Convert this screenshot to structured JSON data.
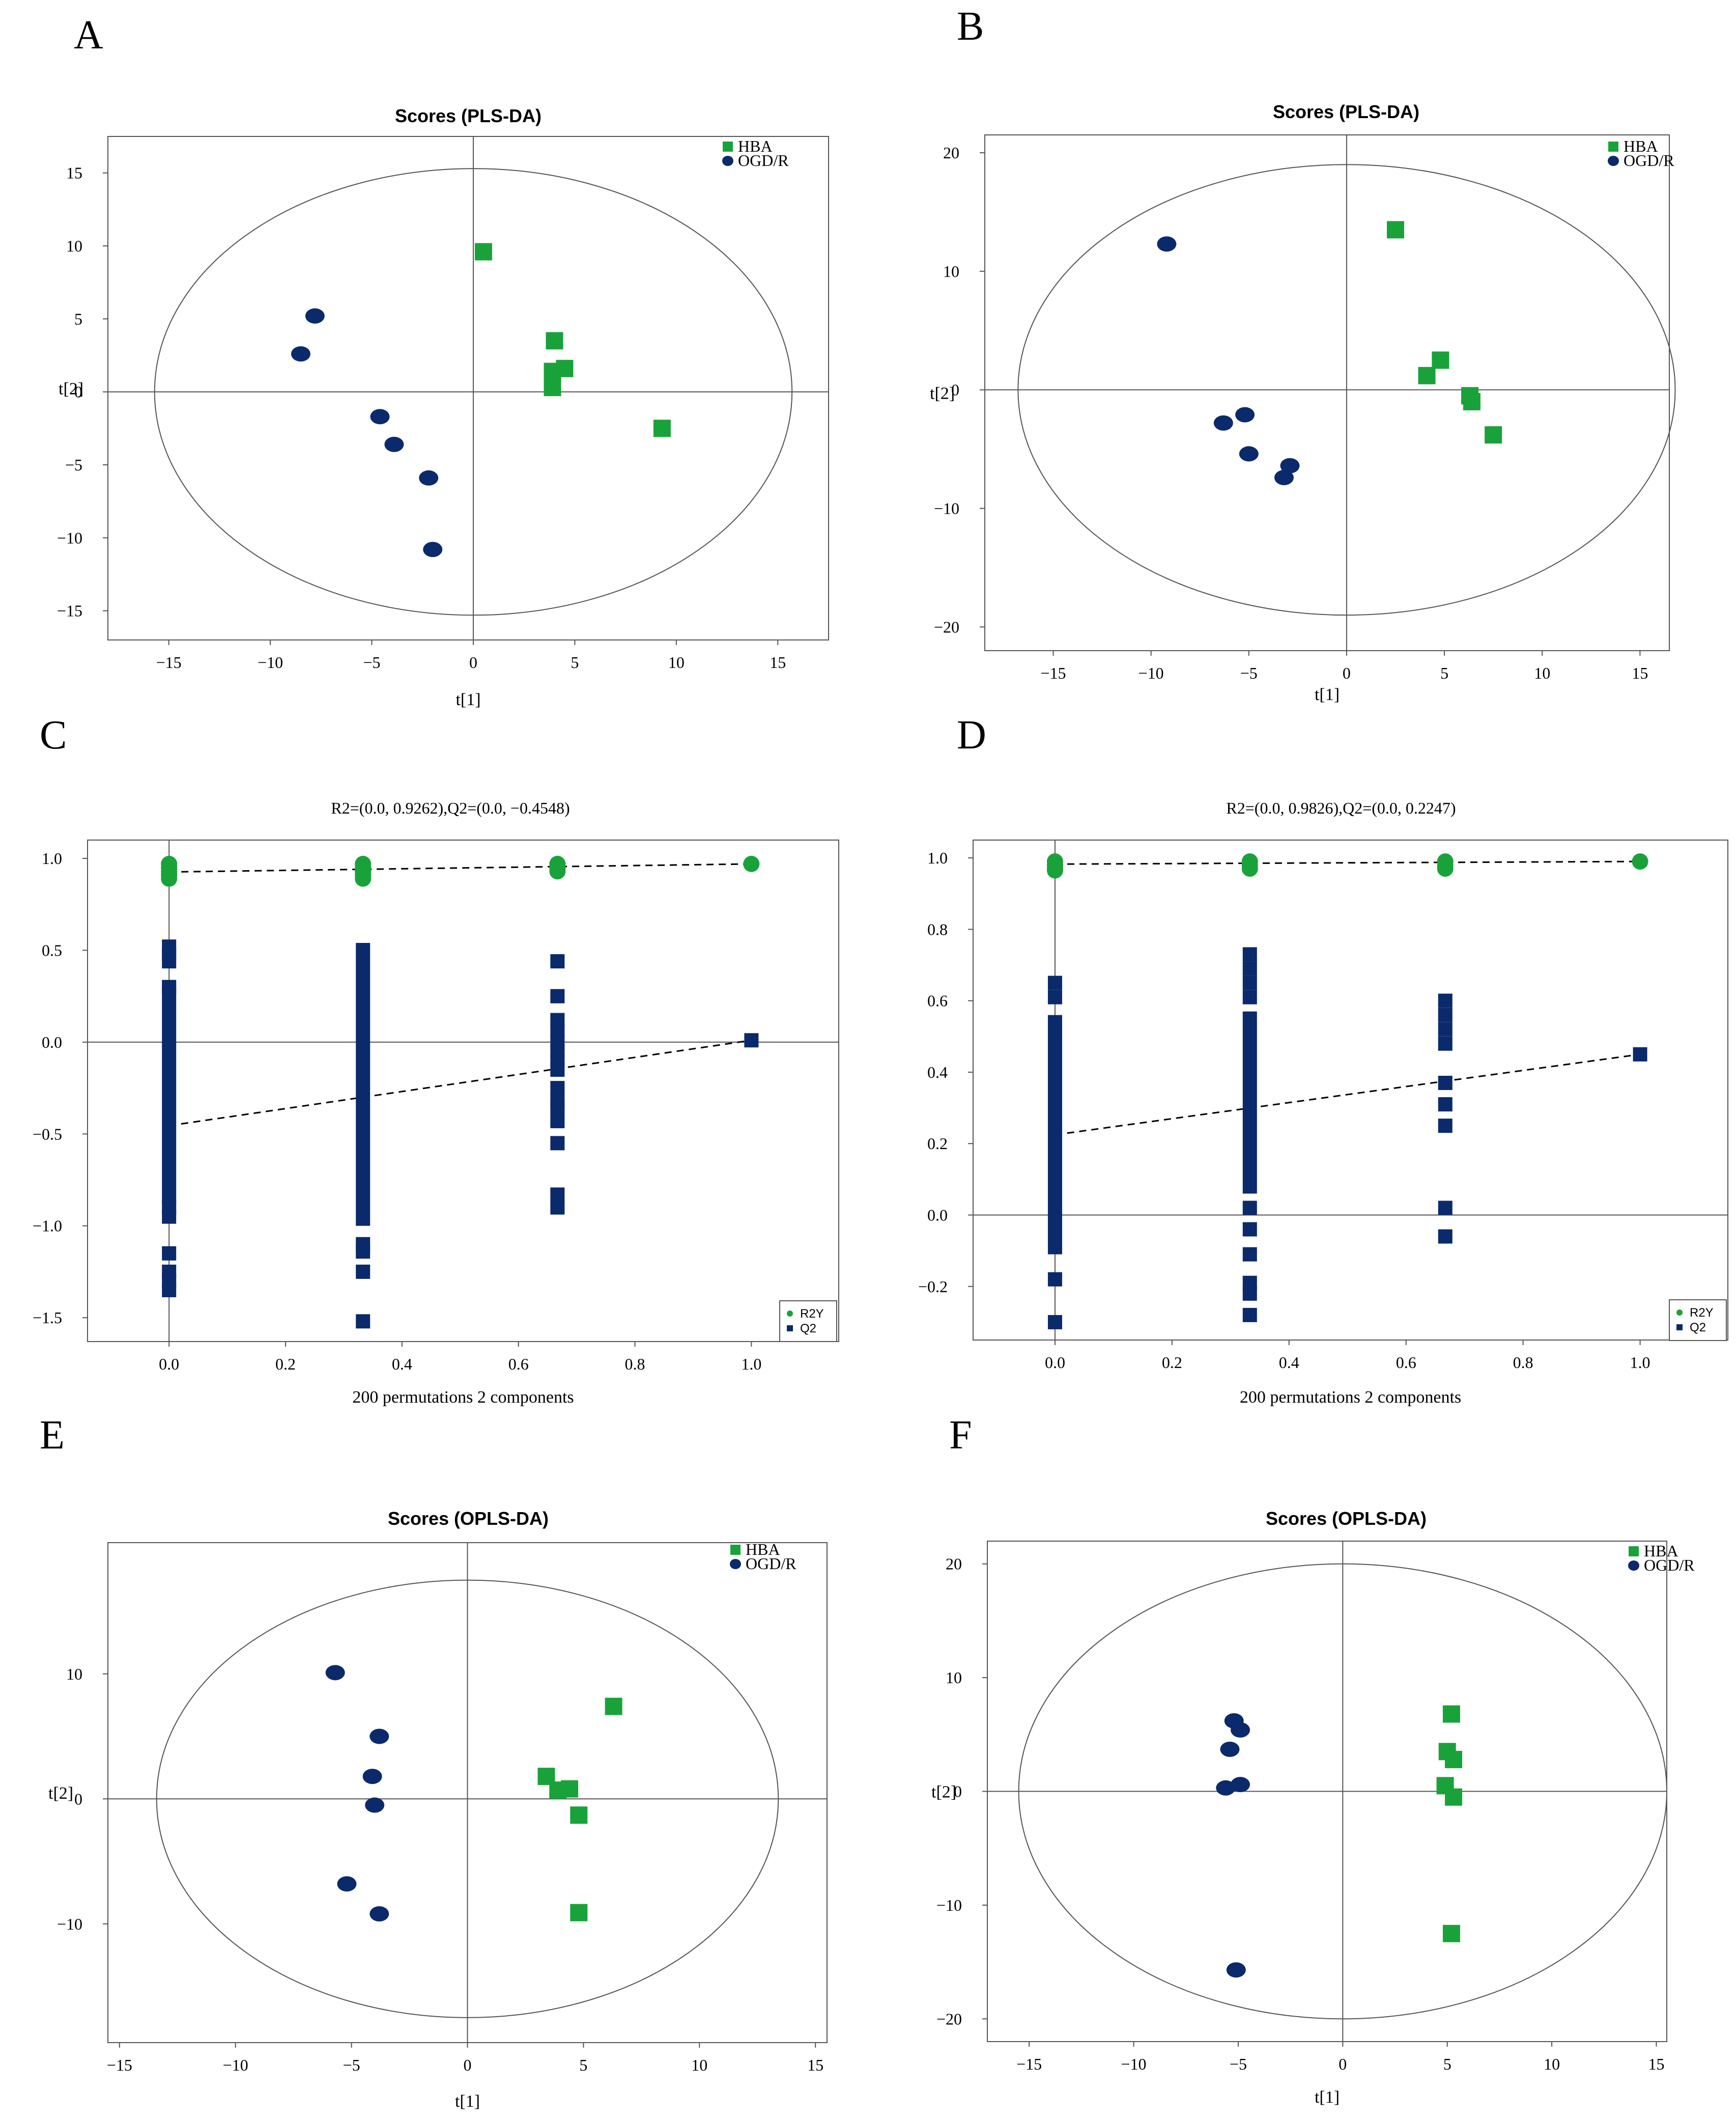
{
  "colors": {
    "green": "#1aa23a",
    "navy": "#0b2a6b",
    "axis": "#555555",
    "ellipse": "#555555"
  },
  "chart_data": [
    {
      "panel": "A",
      "type": "scatter",
      "title": "Scores (PLS-DA)",
      "xlabel": "t[1]",
      "ylabel": "t[2]",
      "xlim": [
        -18,
        17.5
      ],
      "ylim": [
        -17,
        17.5
      ],
      "xticks": [
        -15,
        -10,
        -5,
        0,
        5,
        10,
        15
      ],
      "yticks": [
        -15,
        -10,
        -5,
        0,
        5,
        10,
        15
      ],
      "ellipse": {
        "rx": 15.7,
        "ry": 15.3
      },
      "legend": [
        "HBA",
        "OGD/R"
      ],
      "series": [
        {
          "name": "HBA",
          "marker": "square",
          "color": "#1aa23a",
          "points": [
            [
              0.5,
              9.6
            ],
            [
              4.0,
              3.5
            ],
            [
              3.9,
              1.4
            ],
            [
              4.5,
              1.6
            ],
            [
              3.9,
              0.3
            ],
            [
              9.3,
              -2.5
            ]
          ]
        },
        {
          "name": "OGD/R",
          "marker": "circle",
          "color": "#0b2a6b",
          "points": [
            [
              -7.8,
              5.2
            ],
            [
              -8.5,
              2.6
            ],
            [
              -4.6,
              -1.7
            ],
            [
              -3.9,
              -3.6
            ],
            [
              -2.2,
              -5.9
            ],
            [
              -2.0,
              -10.8
            ]
          ]
        }
      ]
    },
    {
      "panel": "B",
      "type": "scatter",
      "title": "Scores (PLS-DA)",
      "xlabel": "t[1]",
      "ylabel": "t[2]",
      "xlim": [
        -18.5,
        16.5
      ],
      "ylim": [
        -22,
        21.5
      ],
      "xticks": [
        -15,
        -10,
        -5,
        0,
        5,
        10,
        15
      ],
      "yticks": [
        -20,
        -10,
        0,
        10,
        20
      ],
      "ellipse": {
        "rx": 16.8,
        "ry": 19
      },
      "legend": [
        "HBA",
        "OGD/R"
      ],
      "series": [
        {
          "name": "HBA",
          "marker": "square",
          "color": "#1aa23a",
          "points": [
            [
              2.5,
              13.5
            ],
            [
              4.8,
              2.5
            ],
            [
              4.1,
              1.2
            ],
            [
              6.3,
              -0.5
            ],
            [
              6.4,
              -1.0
            ],
            [
              7.5,
              -3.8
            ]
          ]
        },
        {
          "name": "OGD/R",
          "marker": "circle",
          "color": "#0b2a6b",
          "points": [
            [
              -9.2,
              12.3
            ],
            [
              -5.2,
              -2.1
            ],
            [
              -6.3,
              -2.8
            ],
            [
              -5.0,
              -5.4
            ],
            [
              -2.9,
              -6.4
            ],
            [
              -3.2,
              -7.4
            ]
          ]
        }
      ]
    },
    {
      "panel": "C",
      "type": "scatter",
      "title": "R2=(0.0, 0.9262),Q2=(0.0, −0.4548)",
      "xlabel": "200 permutations 2 components",
      "ylabel": "",
      "xlim": [
        -0.14,
        1.15
      ],
      "ylim": [
        -1.63,
        1.1
      ],
      "xticks": [
        0.0,
        0.2,
        0.4,
        0.6,
        0.8,
        1.0
      ],
      "yticks": [
        -1.5,
        -1.0,
        -0.5,
        0.0,
        0.5,
        1.0
      ],
      "legend": [
        "R2Y",
        "Q2"
      ],
      "regression": [
        {
          "name": "R2Y",
          "from": [
            0.0,
            0.9262
          ],
          "to": [
            1.0,
            0.97
          ]
        },
        {
          "name": "Q2",
          "from": [
            0.0,
            -0.4548
          ],
          "to": [
            1.0,
            0.01
          ]
        }
      ],
      "series": [
        {
          "name": "R2Y",
          "marker": "circle",
          "color": "#1aa23a",
          "points": [
            [
              0.0,
              0.97
            ],
            [
              0.0,
              0.95
            ],
            [
              0.0,
              0.93
            ],
            [
              0.0,
              0.91
            ],
            [
              0.0,
              0.89
            ],
            [
              0.333,
              0.97
            ],
            [
              0.333,
              0.95
            ],
            [
              0.333,
              0.93
            ],
            [
              0.333,
              0.91
            ],
            [
              0.333,
              0.89
            ],
            [
              0.667,
              0.97
            ],
            [
              0.667,
              0.95
            ],
            [
              0.667,
              0.93
            ],
            [
              1.0,
              0.97
            ]
          ]
        },
        {
          "name": "Q2",
          "marker": "square",
          "color": "#0b2a6b",
          "points": [
            [
              0.0,
              0.52
            ],
            [
              0.0,
              0.48
            ],
            [
              0.0,
              0.44
            ],
            [
              0.0,
              0.3
            ],
            [
              0.0,
              -0.9
            ],
            [
              0.0,
              -0.95
            ],
            [
              0.0,
              -1.15
            ],
            [
              0.0,
              -1.25
            ],
            [
              0.0,
              -1.3
            ],
            [
              0.0,
              -1.35
            ],
            [
              0.333,
              -1.1
            ],
            [
              0.333,
              -1.14
            ],
            [
              0.333,
              -1.25
            ],
            [
              0.333,
              -1.52
            ],
            [
              0.667,
              0.44
            ],
            [
              0.667,
              0.25
            ],
            [
              0.667,
              0.12
            ],
            [
              0.667,
              0.06
            ],
            [
              0.667,
              0.0
            ],
            [
              0.667,
              -0.05
            ],
            [
              0.667,
              -0.1
            ],
            [
              0.667,
              -0.15
            ],
            [
              0.667,
              -0.25
            ],
            [
              0.667,
              -0.32
            ],
            [
              0.667,
              -0.36
            ],
            [
              0.667,
              -0.43
            ],
            [
              0.667,
              -0.55
            ],
            [
              0.667,
              -0.83
            ],
            [
              0.667,
              -0.9
            ],
            [
              1.0,
              0.01
            ]
          ]
        }
      ],
      "bars": [
        {
          "x": 0.0,
          "from": -0.88,
          "to": 0.31
        },
        {
          "x": 0.333,
          "from": -1.0,
          "to": 0.54
        }
      ]
    },
    {
      "panel": "D",
      "type": "scatter",
      "title": "R2=(0.0, 0.9826),Q2=(0.0, 0.2247)",
      "xlabel": "200 permutations 2 components",
      "ylabel": "",
      "xlim": [
        -0.14,
        1.15
      ],
      "ylim": [
        -0.35,
        1.05
      ],
      "xticks": [
        0.0,
        0.2,
        0.4,
        0.6,
        0.8,
        1.0
      ],
      "yticks": [
        -0.2,
        0.0,
        0.2,
        0.4,
        0.6,
        0.8,
        1.0
      ],
      "legend": [
        "R2Y",
        "Q2"
      ],
      "regression": [
        {
          "name": "R2Y",
          "from": [
            0.0,
            0.9826
          ],
          "to": [
            1.0,
            0.99
          ]
        },
        {
          "name": "Q2",
          "from": [
            0.0,
            0.2247
          ],
          "to": [
            1.0,
            0.45
          ]
        }
      ],
      "series": [
        {
          "name": "R2Y",
          "marker": "circle",
          "color": "#1aa23a",
          "points": [
            [
              0.0,
              0.99
            ],
            [
              0.0,
              0.98
            ],
            [
              0.0,
              0.97
            ],
            [
              0.0,
              0.965
            ],
            [
              0.333,
              0.99
            ],
            [
              0.333,
              0.98
            ],
            [
              0.333,
              0.97
            ],
            [
              0.667,
              0.99
            ],
            [
              0.667,
              0.98
            ],
            [
              0.667,
              0.97
            ],
            [
              1.0,
              0.99
            ]
          ]
        },
        {
          "name": "Q2",
          "marker": "square",
          "color": "#0b2a6b",
          "points": [
            [
              0.0,
              0.65
            ],
            [
              0.0,
              0.61
            ],
            [
              0.0,
              -0.18
            ],
            [
              0.0,
              -0.3
            ],
            [
              0.333,
              0.73
            ],
            [
              0.333,
              0.69
            ],
            [
              0.333,
              0.65
            ],
            [
              0.333,
              0.61
            ],
            [
              0.333,
              0.02
            ],
            [
              0.333,
              -0.04
            ],
            [
              0.333,
              -0.11
            ],
            [
              0.333,
              -0.19
            ],
            [
              0.333,
              -0.22
            ],
            [
              0.333,
              -0.28
            ],
            [
              0.667,
              0.6
            ],
            [
              0.667,
              0.56
            ],
            [
              0.667,
              0.52
            ],
            [
              0.667,
              0.48
            ],
            [
              0.667,
              0.37
            ],
            [
              0.667,
              0.31
            ],
            [
              0.667,
              0.25
            ],
            [
              0.667,
              0.02
            ],
            [
              0.667,
              -0.06
            ],
            [
              1.0,
              0.45
            ]
          ]
        }
      ],
      "bars": [
        {
          "x": 0.0,
          "from": -0.11,
          "to": 0.56
        },
        {
          "x": 0.333,
          "from": 0.06,
          "to": 0.57
        }
      ]
    },
    {
      "panel": "E",
      "type": "scatter",
      "title": "Scores (OPLS-DA)",
      "xlabel": "t[1]",
      "ylabel": "t[2]",
      "xlim": [
        -15.5,
        15.5
      ],
      "ylim": [
        -19.5,
        20.5
      ],
      "xticks": [
        -15,
        -10,
        -5,
        0,
        5,
        10,
        15
      ],
      "yticks": [
        -10,
        0,
        10
      ],
      "ellipse": {
        "rx": 13.4,
        "ry": 17.5
      },
      "legend": [
        "HBA",
        "OGD/R"
      ],
      "series": [
        {
          "name": "HBA",
          "marker": "square",
          "color": "#1aa23a",
          "points": [
            [
              6.3,
              7.4
            ],
            [
              3.4,
              1.8
            ],
            [
              4.4,
              0.8
            ],
            [
              3.9,
              0.7
            ],
            [
              4.8,
              -1.3
            ],
            [
              4.8,
              -9.1
            ]
          ]
        },
        {
          "name": "OGD/R",
          "marker": "circle",
          "color": "#0b2a6b",
          "points": [
            [
              -5.7,
              10.1
            ],
            [
              -3.8,
              5.0
            ],
            [
              -4.1,
              1.8
            ],
            [
              -4.0,
              -0.5
            ],
            [
              -5.2,
              -6.8
            ],
            [
              -3.8,
              -9.2
            ]
          ]
        }
      ]
    },
    {
      "panel": "F",
      "type": "scatter",
      "title": "Scores (OPLS-DA)",
      "xlabel": "t[1]",
      "ylabel": "t[2]",
      "xlim": [
        -17,
        15.5
      ],
      "ylim": [
        -22,
        22
      ],
      "xticks": [
        -15,
        -10,
        -5,
        0,
        5,
        10,
        15
      ],
      "yticks": [
        -20,
        -10,
        0,
        10,
        20
      ],
      "ellipse": {
        "rx": 15.5,
        "ry": 20
      },
      "legend": [
        "HBA",
        "OGD/R"
      ],
      "series": [
        {
          "name": "HBA",
          "marker": "square",
          "color": "#1aa23a",
          "points": [
            [
              5.2,
              6.8
            ],
            [
              5.0,
              3.5
            ],
            [
              5.3,
              2.8
            ],
            [
              4.9,
              0.5
            ],
            [
              5.3,
              -0.5
            ],
            [
              5.2,
              -12.5
            ]
          ]
        },
        {
          "name": "OGD/R",
          "marker": "circle",
          "color": "#0b2a6b",
          "points": [
            [
              -5.2,
              6.2
            ],
            [
              -4.9,
              5.4
            ],
            [
              -5.4,
              3.7
            ],
            [
              -5.6,
              0.3
            ],
            [
              -4.9,
              0.6
            ],
            [
              -5.1,
              -15.7
            ]
          ]
        }
      ]
    }
  ]
}
